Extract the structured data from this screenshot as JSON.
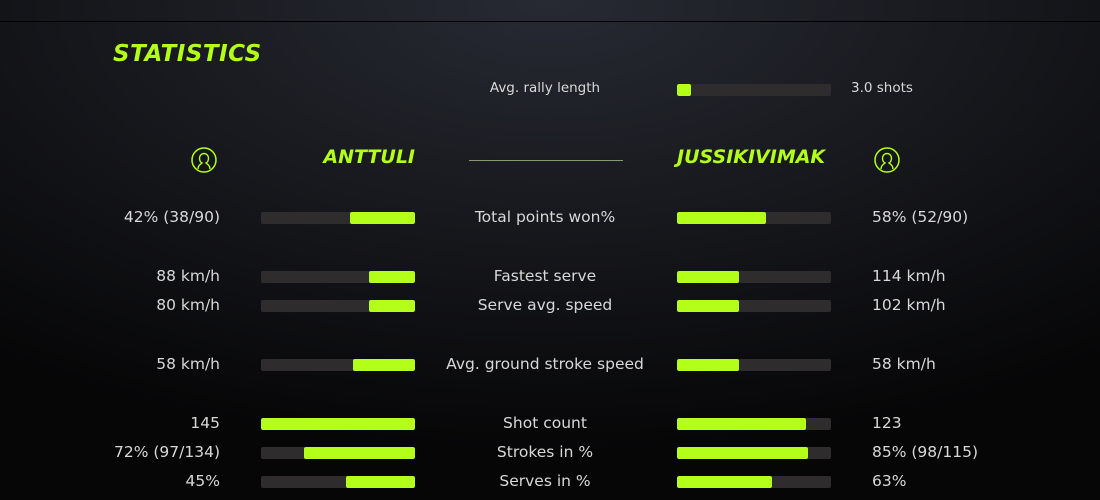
{
  "title": "STATISTICS",
  "rally": {
    "label": "Avg. rally length",
    "value": "3.0 shots",
    "fill": 0.09
  },
  "players": {
    "left": {
      "name": "ANTTULI",
      "icon": "user-circle-icon"
    },
    "right": {
      "name": "JUSSIKIVIMAK",
      "icon": "user-circle-icon"
    }
  },
  "accent": "#b4ff1a",
  "stats": [
    {
      "label": "Total points won%",
      "left": "42% (38/90)",
      "right": "58% (52/90)",
      "left_fill": 0.42,
      "right_fill": 0.58
    },
    {
      "label": "Fastest serve",
      "left": "88 km/h",
      "right": "114 km/h",
      "left_fill": 0.3,
      "right_fill": 0.4
    },
    {
      "label": "Serve avg. speed",
      "left": "80 km/h",
      "right": "102 km/h",
      "left_fill": 0.3,
      "right_fill": 0.4
    },
    {
      "label": "Avg. ground stroke speed",
      "left": "58 km/h",
      "right": "58 km/h",
      "left_fill": 0.4,
      "right_fill": 0.4
    },
    {
      "label": "Shot count",
      "left": "145",
      "right": "123",
      "left_fill": 1.0,
      "right_fill": 0.84
    },
    {
      "label": "Strokes in %",
      "left": "72% (97/134)",
      "right": "85% (98/115)",
      "left_fill": 0.72,
      "right_fill": 0.85
    },
    {
      "label": "Serves in %",
      "left": "45%",
      "right": "63%",
      "left_fill": 0.45,
      "right_fill": 0.62
    }
  ]
}
